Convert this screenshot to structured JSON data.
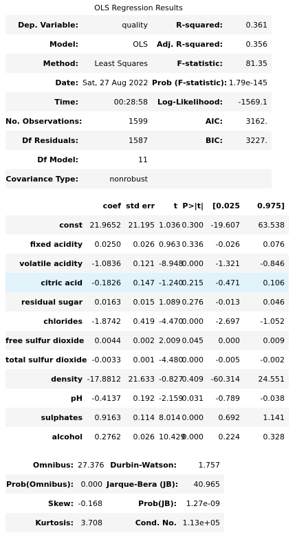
{
  "title": "OLS Regression Results",
  "summary": {
    "rows": [
      [
        "Dep. Variable:",
        "quality",
        "R-squared:",
        "0.361"
      ],
      [
        "Model:",
        "OLS",
        "Adj. R-squared:",
        "0.356"
      ],
      [
        "Method:",
        "Least Squares",
        "F-statistic:",
        "81.35"
      ],
      [
        "Date:",
        "Sat, 27 Aug 2022",
        "Prob (F-statistic):",
        "1.79e-145"
      ],
      [
        "Time:",
        "00:28:58",
        "Log-Likelihood:",
        "-1569.1"
      ],
      [
        "No. Observations:",
        "1599",
        "AIC:",
        "3162."
      ],
      [
        "Df Residuals:",
        "1587",
        "BIC:",
        "3227."
      ],
      [
        "Df Model:",
        "11"
      ],
      [
        "Covariance Type:",
        "nonrobust"
      ]
    ]
  },
  "coefficients": {
    "header": [
      "coef",
      "std err",
      "t",
      "P>|t|",
      "[0.025",
      "0.975]"
    ],
    "rows": [
      [
        "const",
        "21.9652",
        "21.195",
        "1.036",
        "0.300",
        "-19.607",
        "63.538"
      ],
      [
        "fixed acidity",
        "0.0250",
        "0.026",
        "0.963",
        "0.336",
        "-0.026",
        "0.076"
      ],
      [
        "volatile acidity",
        "-1.0836",
        "0.121",
        "-8.948",
        "0.000",
        "-1.321",
        "-0.846"
      ],
      [
        "citric acid",
        "-0.1826",
        "0.147",
        "-1.240",
        "0.215",
        "-0.471",
        "0.106"
      ],
      [
        "residual sugar",
        "0.0163",
        "0.015",
        "1.089",
        "0.276",
        "-0.013",
        "0.046"
      ],
      [
        "chlorides",
        "-1.8742",
        "0.419",
        "-4.470",
        "0.000",
        "-2.697",
        "-1.052"
      ],
      [
        "free sulfur dioxide",
        "0.0044",
        "0.002",
        "2.009",
        "0.045",
        "0.000",
        "0.009"
      ],
      [
        "total sulfur dioxide",
        "-0.0033",
        "0.001",
        "-4.480",
        "0.000",
        "-0.005",
        "-0.002"
      ],
      [
        "density",
        "-17.8812",
        "21.633",
        "-0.827",
        "0.409",
        "-60.314",
        "24.551"
      ],
      [
        "pH",
        "-0.4137",
        "0.192",
        "-2.159",
        "0.031",
        "-0.789",
        "-0.038"
      ],
      [
        "sulphates",
        "0.9163",
        "0.114",
        "8.014",
        "0.000",
        "0.692",
        "1.141"
      ],
      [
        "alcohol",
        "0.2762",
        "0.026",
        "10.429",
        "0.000",
        "0.224",
        "0.328"
      ]
    ]
  },
  "diagnostics": {
    "rows": [
      [
        "Omnibus:",
        "27.376",
        "Durbin-Watson:",
        "1.757"
      ],
      [
        "Prob(Omnibus):",
        "0.000",
        "Jarque-Bera (JB):",
        "40.965"
      ],
      [
        "Skew:",
        "-0.168",
        "Prob(JB):",
        "1.27e-09"
      ],
      [
        "Kurtosis:",
        "3.708",
        "Cond. No.",
        "1.13e+05"
      ]
    ]
  }
}
